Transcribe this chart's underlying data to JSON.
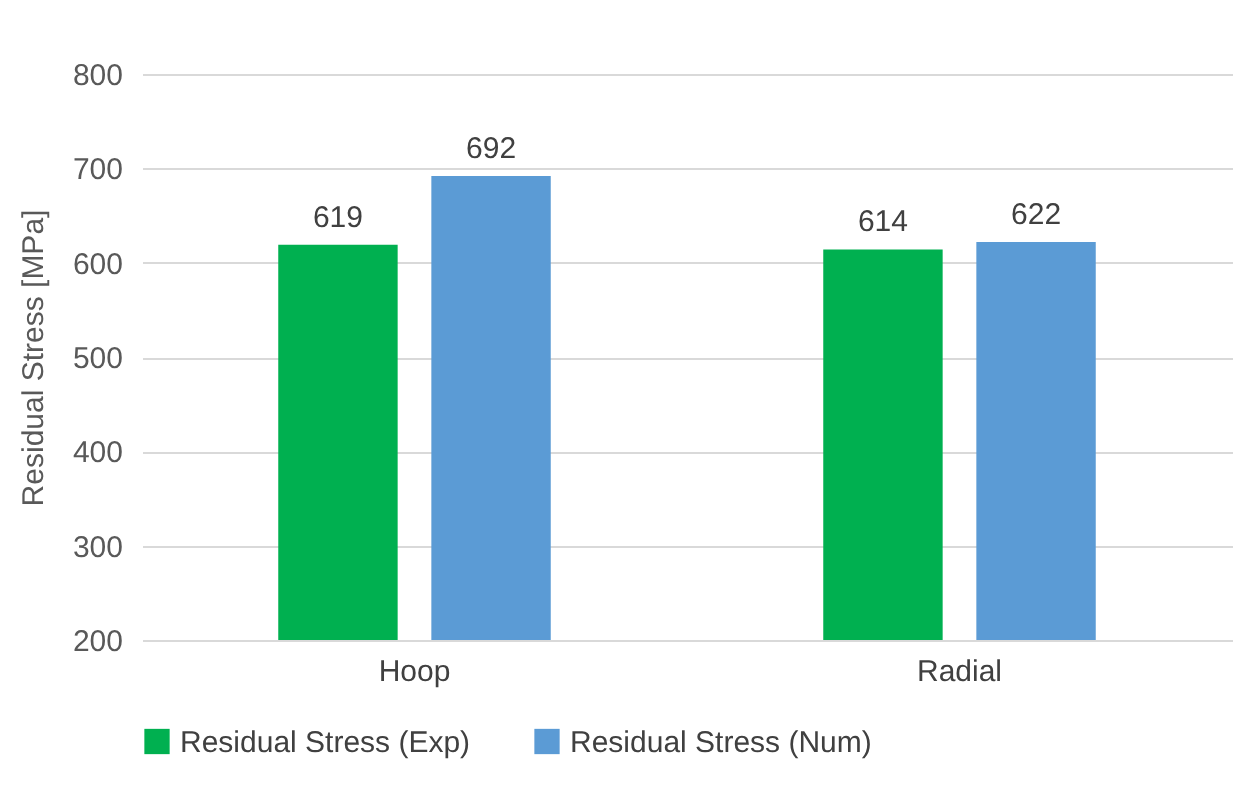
{
  "chart_data": {
    "type": "bar",
    "ylabel": "Residual Stress [MPa]",
    "categories": [
      "Hoop",
      "Radial"
    ],
    "series": [
      {
        "name": "Residual Stress (Exp)",
        "color": "#00b050",
        "values": [
          619,
          614
        ]
      },
      {
        "name": "Residual Stress (Num)",
        "color": "#5b9bd5",
        "values": [
          692,
          622
        ]
      }
    ],
    "ylim": [
      200,
      800
    ],
    "yticks": [
      200,
      300,
      400,
      500,
      600,
      700,
      800
    ],
    "grid": "y",
    "legend": "bottom",
    "data_labels": true
  }
}
